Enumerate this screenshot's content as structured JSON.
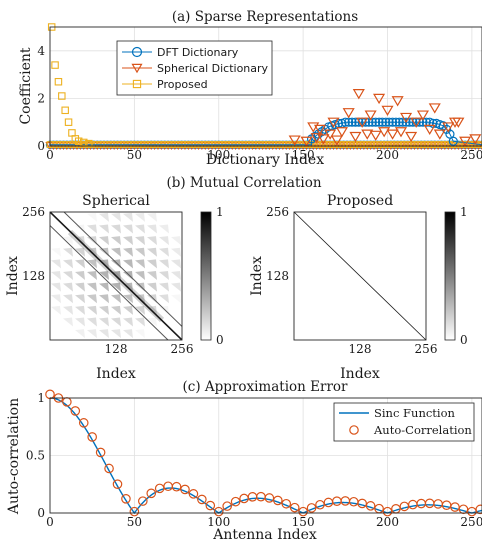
{
  "colors": {
    "blue": "#0072BD",
    "orange": "#D95319",
    "yellow": "#EDB120"
  },
  "chart_data": [
    {
      "id": "a",
      "type": "scatter",
      "title": "(a) Sparse Representations",
      "xlabel": "Dictionary Index",
      "ylabel": "Coefficient",
      "xlim": [
        0,
        256
      ],
      "ylim": [
        0,
        5
      ],
      "xticks": [
        "0",
        "50",
        "100",
        "150",
        "200",
        "250"
      ],
      "yticks": [
        "0",
        "2",
        "4"
      ],
      "grid": true,
      "legend_position": "top-left",
      "series": [
        {
          "name": "DFT Dictionary",
          "marker": "circle",
          "color": "#0072BD",
          "points": [
            [
              155,
              0.3
            ],
            [
              157,
              0.4
            ],
            [
              159,
              0.5
            ],
            [
              161,
              0.6
            ],
            [
              163,
              0.7
            ],
            [
              165,
              0.8
            ],
            [
              167,
              0.85
            ],
            [
              169,
              0.9
            ],
            [
              171,
              0.95
            ],
            [
              173,
              0.95
            ],
            [
              175,
              1.0
            ],
            [
              177,
              1.0
            ],
            [
              179,
              1.0
            ],
            [
              181,
              1.0
            ],
            [
              183,
              1.0
            ],
            [
              185,
              1.0
            ],
            [
              187,
              1.0
            ],
            [
              189,
              1.0
            ],
            [
              191,
              1.0
            ],
            [
              193,
              1.0
            ],
            [
              195,
              1.0
            ],
            [
              197,
              1.0
            ],
            [
              199,
              1.0
            ],
            [
              201,
              1.0
            ],
            [
              203,
              1.0
            ],
            [
              205,
              1.0
            ],
            [
              207,
              1.0
            ],
            [
              209,
              1.0
            ],
            [
              211,
              1.0
            ],
            [
              213,
              1.0
            ],
            [
              215,
              1.0
            ],
            [
              217,
              1.0
            ],
            [
              219,
              1.0
            ],
            [
              221,
              1.0
            ],
            [
              223,
              1.0
            ],
            [
              225,
              1.0
            ],
            [
              227,
              0.95
            ],
            [
              229,
              0.95
            ],
            [
              231,
              0.9
            ],
            [
              233,
              0.85
            ],
            [
              235,
              0.7
            ],
            [
              237,
              0.5
            ],
            [
              239,
              0.2
            ]
          ]
        },
        {
          "name": "Spherical Dictionary",
          "marker": "triangle-down",
          "color": "#D95319",
          "points": [
            [
              145,
              0.25
            ],
            [
              152,
              0.2
            ],
            [
              156,
              0.8
            ],
            [
              158,
              0.35
            ],
            [
              160,
              0.7
            ],
            [
              162,
              0.3
            ],
            [
              166,
              0.5
            ],
            [
              168,
              1.0
            ],
            [
              170,
              0.25
            ],
            [
              173,
              0.6
            ],
            [
              177,
              1.4
            ],
            [
              181,
              0.4
            ],
            [
              183,
              2.2
            ],
            [
              185,
              1.0
            ],
            [
              188,
              0.5
            ],
            [
              190,
              1.3
            ],
            [
              193,
              0.45
            ],
            [
              195,
              2.0
            ],
            [
              198,
              0.6
            ],
            [
              200,
              1.5
            ],
            [
              203,
              0.5
            ],
            [
              206,
              1.9
            ],
            [
              208,
              0.6
            ],
            [
              211,
              1.2
            ],
            [
              214,
              0.4
            ],
            [
              217,
              1.0
            ],
            [
              221,
              1.3
            ],
            [
              225,
              0.7
            ],
            [
              228,
              1.6
            ],
            [
              231,
              0.5
            ],
            [
              236,
              0.8
            ],
            [
              240,
              1.0
            ],
            [
              242,
              1.0
            ],
            [
              246,
              0.2
            ],
            [
              252,
              0.3
            ]
          ]
        },
        {
          "name": "Proposed",
          "marker": "square",
          "color": "#EDB120",
          "points": [
            [
              1,
              5.0
            ],
            [
              3,
              3.4
            ],
            [
              5,
              2.7
            ],
            [
              7,
              2.1
            ],
            [
              9,
              1.5
            ],
            [
              11,
              1.0
            ],
            [
              13,
              0.55
            ],
            [
              15,
              0.3
            ],
            [
              17,
              0.2
            ],
            [
              20,
              0.15
            ],
            [
              23,
              0.1
            ]
          ]
        }
      ],
      "baseline_note": "All three series have near-zero coefficients at every other index from 0 to 256."
    },
    {
      "id": "b",
      "type": "heatmap",
      "title": "(b) Mutual Correlation",
      "panels": [
        {
          "title": "Spherical",
          "xlabel": "Index",
          "ylabel": "Index",
          "xticks": [
            "128",
            "256"
          ],
          "yticks": [
            "128",
            "256"
          ],
          "colorbar_ticks": [
            "0",
            "1"
          ],
          "colormap": "gray-reversed",
          "pattern": "strong main diagonal, two weaker parallel off-diagonal bands, and faint checkerboard side-lobes near the centre"
        },
        {
          "title": "Proposed",
          "xlabel": "Index",
          "ylabel": "Index",
          "xticks": [
            "128",
            "256"
          ],
          "yticks": [
            "128",
            "256"
          ],
          "colorbar_ticks": [
            "0",
            "1"
          ],
          "colormap": "gray-reversed",
          "pattern": "thin main diagonal only"
        }
      ]
    },
    {
      "id": "c",
      "type": "line",
      "title": "(c) Approximation Error",
      "xlabel": "Antenna Index",
      "ylabel": "Auto-correlation",
      "xlim": [
        0,
        256
      ],
      "ylim": [
        0,
        1
      ],
      "xticks": [
        "0",
        "50",
        "100",
        "150",
        "200",
        "250"
      ],
      "yticks": [
        "0",
        "0.5",
        "1"
      ],
      "grid": true,
      "legend_position": "top-right",
      "series": [
        {
          "name": "Sinc Function",
          "style": "line",
          "color": "#0072BD"
        },
        {
          "name": "Auto-Correlation",
          "style": "circle",
          "color": "#D95319"
        }
      ],
      "sample_step": 5
    }
  ]
}
